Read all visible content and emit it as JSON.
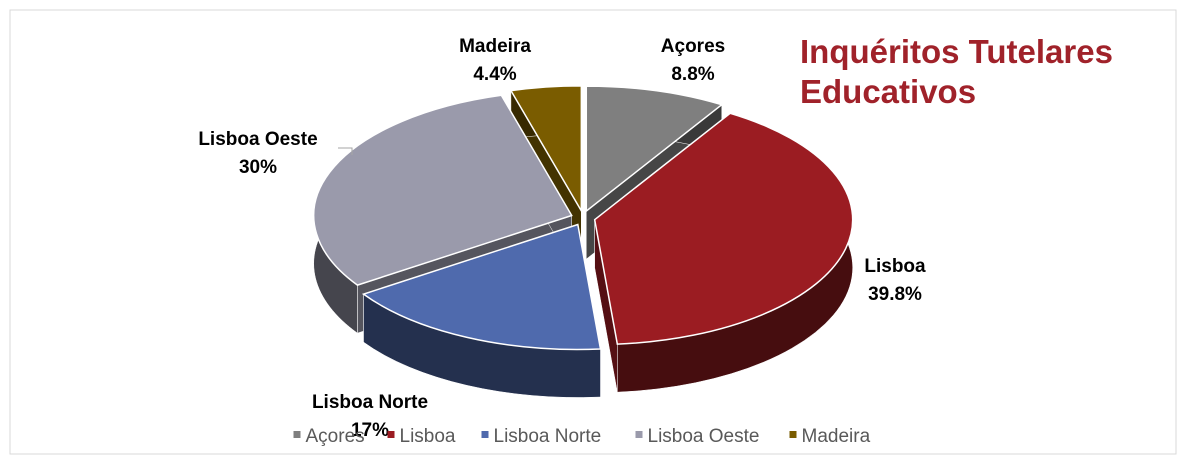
{
  "chart_data": {
    "type": "pie",
    "title": "Inquéritos Tutelares Educativos",
    "categories": [
      "Açores",
      "Lisboa",
      "Lisboa Norte",
      "Lisboa Oeste",
      "Madeira"
    ],
    "values": [
      8.8,
      39.8,
      17,
      30,
      4.4
    ],
    "value_labels": [
      "8.8%",
      "39.8%",
      "17%",
      "30%",
      "4.4%"
    ],
    "colors": [
      "#7f7f7f",
      "#9b1c22",
      "#4f6aad",
      "#9a9aab",
      "#7a5c00"
    ],
    "legend": "bottom"
  }
}
